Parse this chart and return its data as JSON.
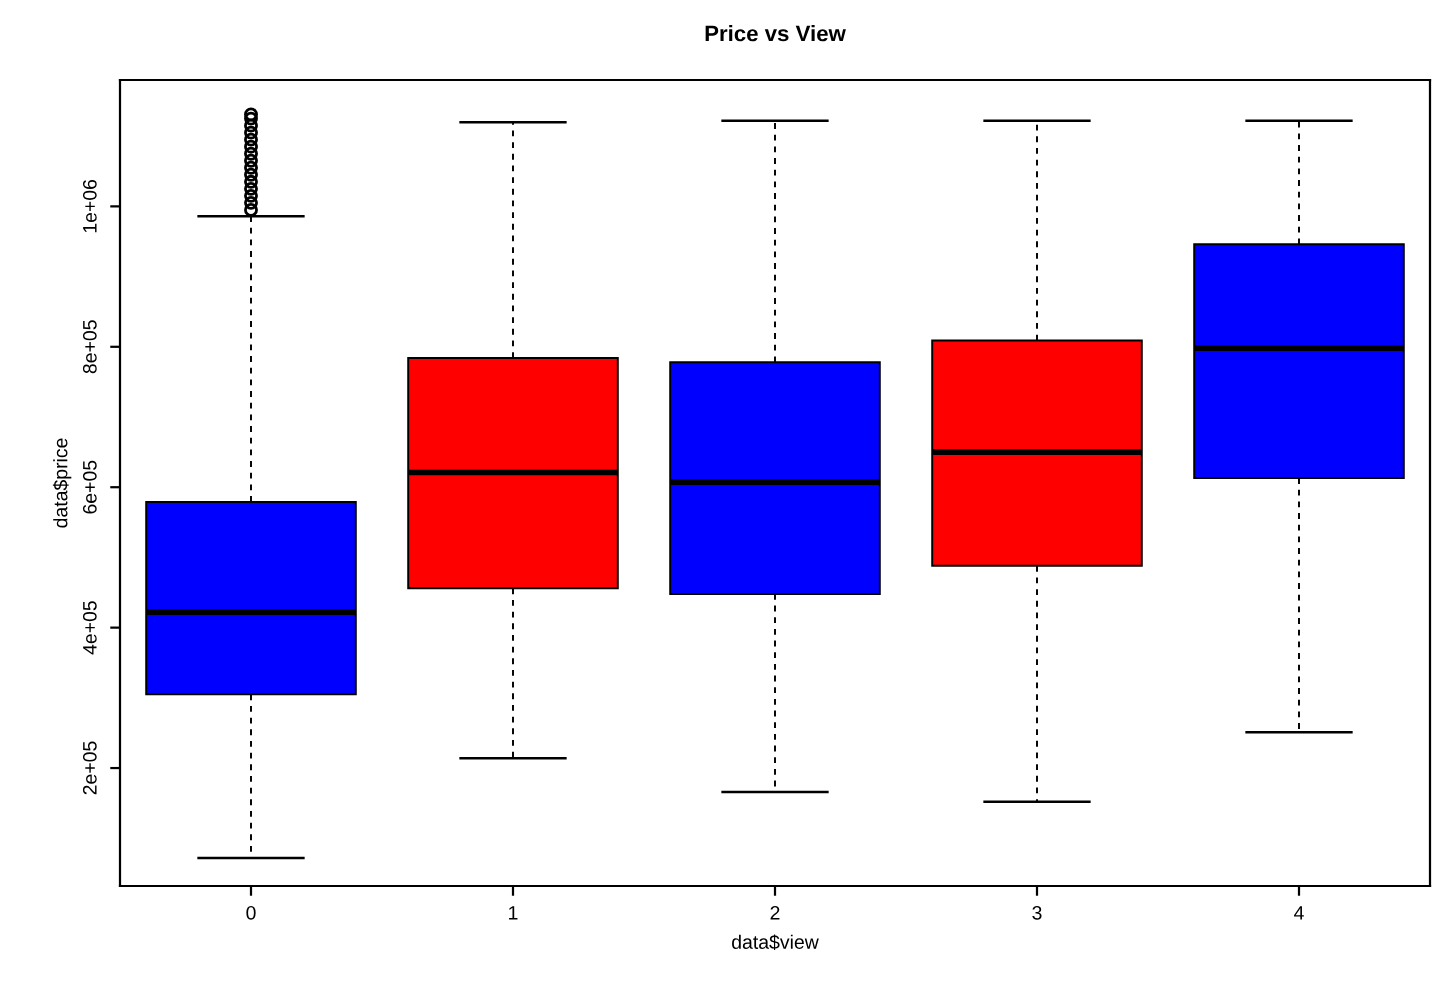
{
  "chart_data": {
    "type": "box",
    "title": "Price vs View",
    "xlabel": "data$view",
    "ylabel": "data$price",
    "categories": [
      "0",
      "1",
      "2",
      "3",
      "4"
    ],
    "colors": [
      "#0000ff",
      "#ff0000",
      "#0000ff",
      "#ff0000",
      "#0000ff"
    ],
    "boxes": [
      {
        "low": 72000,
        "q1": 305000,
        "median": 422000,
        "q3": 579000,
        "high": 986000,
        "outliers": [
          995000,
          1005000,
          1015000,
          1025000,
          1035000,
          1045000,
          1055000,
          1065000,
          1075000,
          1085000,
          1095000,
          1105000,
          1115000,
          1125000,
          1131000
        ]
      },
      {
        "low": 214000,
        "q1": 456000,
        "median": 621000,
        "q3": 784000,
        "high": 1120000
      },
      {
        "low": 166000,
        "q1": 448000,
        "median": 607000,
        "q3": 778000,
        "high": 1122000
      },
      {
        "low": 152000,
        "q1": 488000,
        "median": 650000,
        "q3": 809000,
        "high": 1122000
      },
      {
        "low": 251000,
        "q1": 613000,
        "median": 798000,
        "q3": 946000,
        "high": 1122000
      }
    ],
    "ylim": [
      32000,
      1180000
    ],
    "yticks": [
      {
        "value": 200000,
        "label": "2e+05"
      },
      {
        "value": 400000,
        "label": "4e+05"
      },
      {
        "value": 600000,
        "label": "6e+05"
      },
      {
        "value": 800000,
        "label": "8e+05"
      },
      {
        "value": 1000000,
        "label": "1e+06"
      }
    ],
    "grid": false
  }
}
